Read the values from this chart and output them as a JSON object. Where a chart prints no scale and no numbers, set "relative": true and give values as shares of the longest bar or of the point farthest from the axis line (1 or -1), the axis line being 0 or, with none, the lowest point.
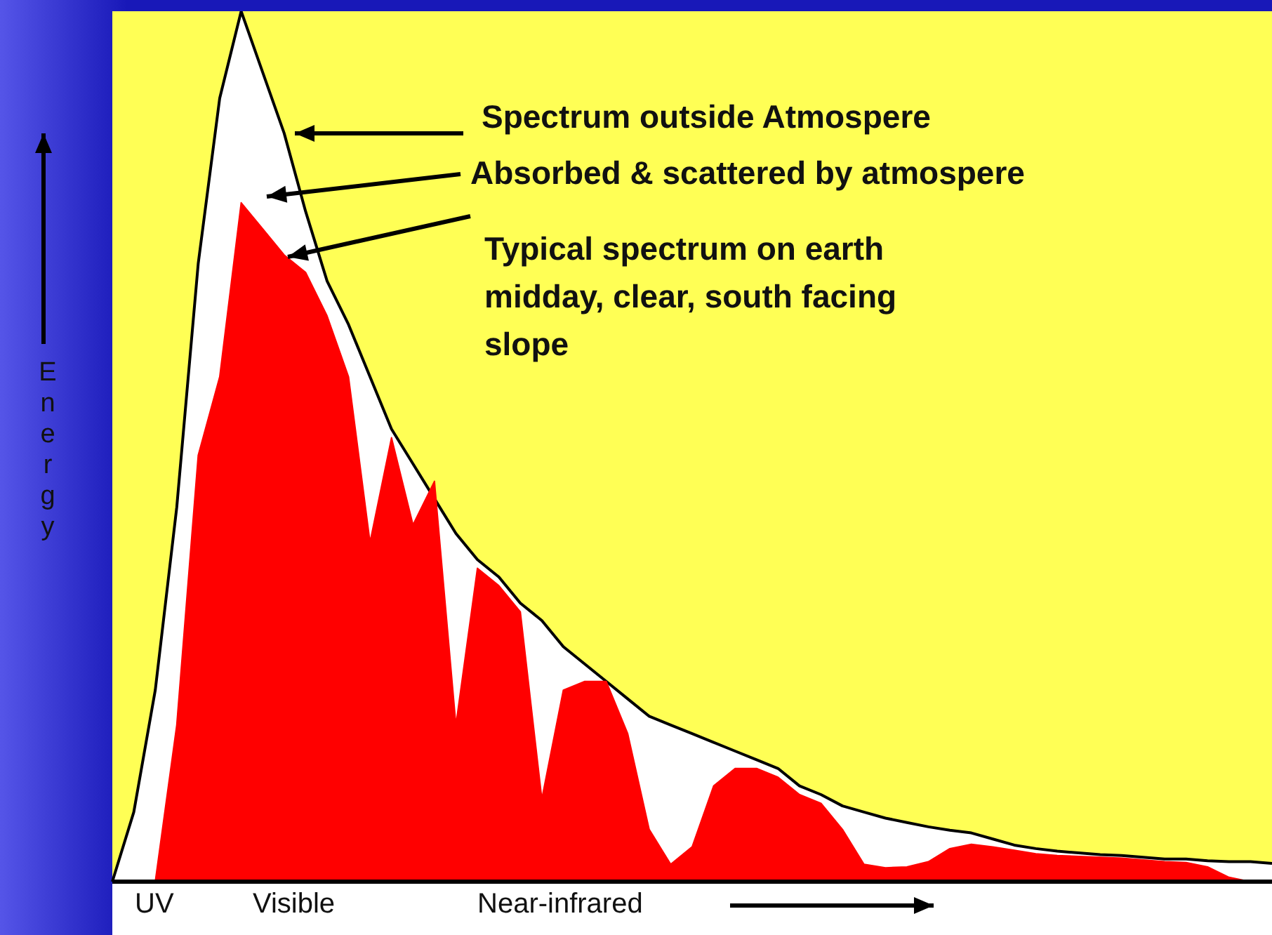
{
  "chart_data": {
    "type": "area",
    "relative": true,
    "ylabel": "Energy",
    "legend": false,
    "categories": [
      null,
      null,
      null,
      null,
      null,
      null,
      null,
      null,
      null,
      null,
      null,
      null,
      null,
      null,
      null,
      null,
      null,
      null,
      null,
      null,
      null,
      null,
      null,
      null,
      null,
      null,
      null,
      null,
      null,
      null,
      null,
      null,
      null,
      null,
      null,
      null,
      null,
      null,
      null,
      null,
      null,
      null,
      null,
      null,
      null,
      null,
      null,
      null,
      null,
      null,
      null,
      null,
      null,
      null,
      null
    ],
    "series": [
      {
        "color": "#ffffff",
        "values": [
          0,
          0.08,
          0.22,
          0.43,
          0.71,
          0.9,
          1,
          0.93,
          0.86,
          0.77,
          0.69,
          0.64,
          0.58,
          0.52,
          0.48,
          0.44,
          0.4,
          0.37,
          0.35,
          0.32,
          0.3,
          0.27,
          0.25,
          0.23,
          0.21,
          0.19,
          0.18,
          0.17,
          0.16,
          0.15,
          0.14,
          0.13,
          0.11,
          0.1,
          0.087,
          0.08,
          0.073,
          0.068,
          0.063,
          0.059,
          0.056,
          0.049,
          0.042,
          0.038,
          0.035,
          0.033,
          0.031,
          0.03,
          0.028,
          0.026,
          0.026,
          0.024,
          0.023,
          0.023,
          0.021
        ]
      },
      {
        "color": "#ff0000",
        "values": [
          0,
          0,
          0,
          0.18,
          0.49,
          0.58,
          0.78,
          0.75,
          0.72,
          0.7,
          0.65,
          0.58,
          0.39,
          0.51,
          0.41,
          0.46,
          0.18,
          0.36,
          0.34,
          0.31,
          0.095,
          0.22,
          0.23,
          0.23,
          0.17,
          0.06,
          0.02,
          0.04,
          0.11,
          0.13,
          0.13,
          0.12,
          0.1,
          0.09,
          0.06,
          0.02,
          0.016,
          0.017,
          0.023,
          0.038,
          0.043,
          0.04,
          0.036,
          0.032,
          0.03,
          0.029,
          0.028,
          0.027,
          0.025,
          0.023,
          0.022,
          0.017,
          0.005,
          0,
          0
        ]
      }
    ],
    "annotations": [
      "Spectrum outside Atmospere",
      "Absorbed & scattered by atmospere",
      "Typical spectrum on earth\nmidday, clear, south facing\nslope",
      "UV",
      "Visible",
      "Near-infrared"
    ]
  }
}
